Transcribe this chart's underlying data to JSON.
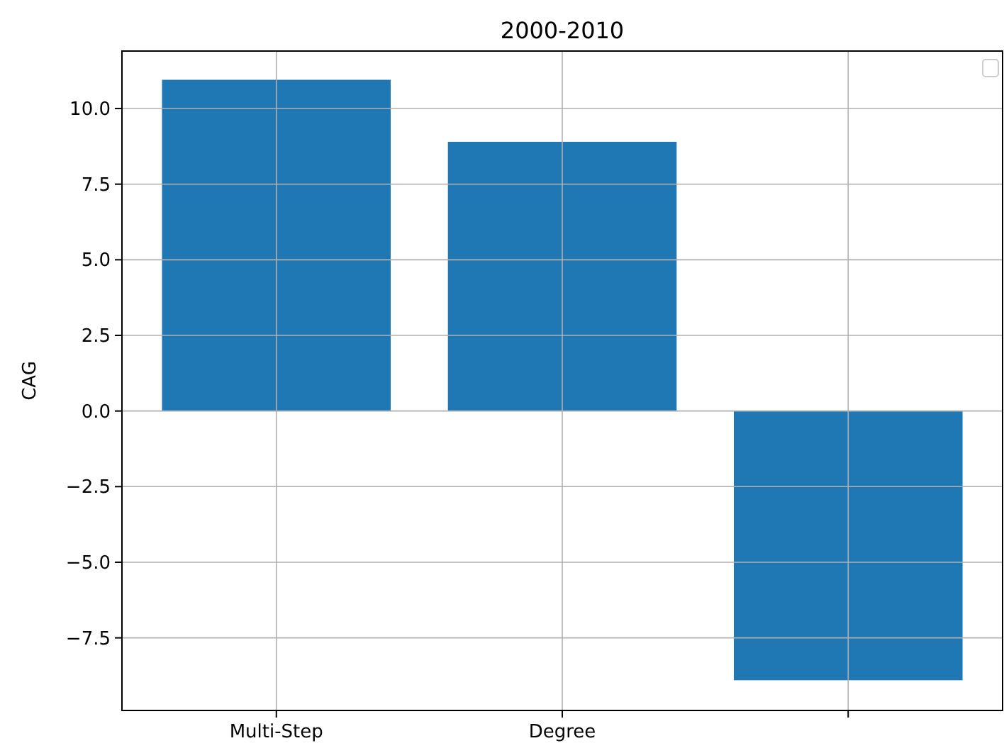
{
  "chart_data": {
    "type": "bar",
    "title": "2000-2010",
    "ylabel": "CAG",
    "categories": [
      "Multi-Step",
      "Degree",
      null
    ],
    "values": [
      10.95,
      8.9,
      -8.9
    ],
    "color": "#1f77b4",
    "ylim": [
      -9.9,
      11.9
    ],
    "yticks": [
      {
        "value": -7.5,
        "label": "−7.5"
      },
      {
        "value": -5,
        "label": "−5.0"
      },
      {
        "value": -2.5,
        "label": "−2.5"
      },
      {
        "value": 0,
        "label": "0.0"
      },
      {
        "value": 2.5,
        "label": "2.5"
      },
      {
        "value": 5,
        "label": "5.0"
      },
      {
        "value": 7.5,
        "label": "7.5"
      },
      {
        "value": 10,
        "label": "10.0"
      }
    ],
    "grid": true
  }
}
